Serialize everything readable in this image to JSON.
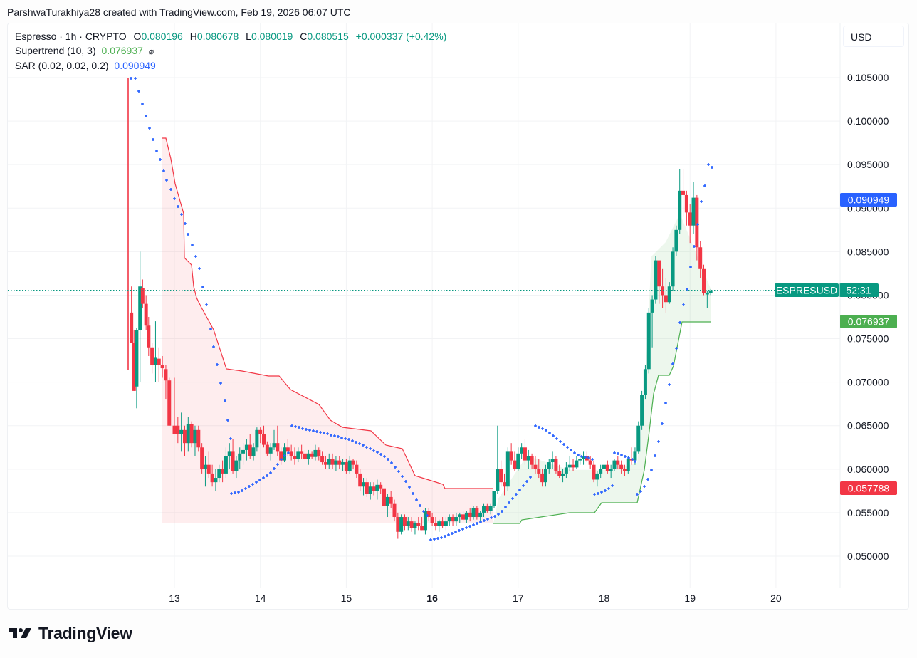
{
  "credit": "ParshwaTurakhiya28 created with TradingView.com, Feb 19, 2026 06:07 UTC",
  "legend": {
    "symbol": "Espresso · 1h · CRYPTO",
    "o_label": "O",
    "o": "0.080196",
    "h_label": "H",
    "h": "0.080678",
    "l_label": "L",
    "l": "0.080019",
    "c_label": "C",
    "c": "0.080515",
    "change": "+0.000337 (+0.42%)",
    "supertrend_label": "Supertrend (10, 3)",
    "supertrend_value": "0.076937",
    "supertrend_icon": "hidden-eye-icon",
    "sar_label": "SAR (0.02, 0.02, 0.2)",
    "sar_value": "0.090949"
  },
  "currency": "USD",
  "price_labels": {
    "sar": "0.090949",
    "symbol": "ESPRESUSD",
    "countdown": "52:31",
    "supertrend": "0.076937",
    "supertrend_down": "0.057788"
  },
  "colors": {
    "up": "#089981",
    "down": "#f23645",
    "sar": "#2962ff",
    "supertrend_up": "#4caf50",
    "supertrend_down": "#f23645"
  },
  "logo": "TradingView",
  "chart_data": {
    "type": "candlestick",
    "title": "Espresso · 1h · CRYPTO",
    "xlabel": "",
    "ylabel": "USD",
    "x_ticks": [
      "13",
      "14",
      "15",
      "16",
      "17",
      "18",
      "19",
      "20"
    ],
    "y_ticks": [
      "0.105000",
      "0.100000",
      "0.095000",
      "0.090000",
      "0.085000",
      "0.080000",
      "0.075000",
      "0.070000",
      "0.065000",
      "0.060000",
      "0.055000",
      "0.050000"
    ],
    "ylim": [
      0.046,
      0.108
    ],
    "grid": true,
    "last_price": 0.080515,
    "indicators": {
      "supertrend": {
        "params": "10, 3",
        "value": 0.076937,
        "last_down_value": 0.057788
      },
      "sar": {
        "params": "0.02, 0.02, 0.2",
        "value": 0.090949
      }
    },
    "candles": [
      [
        12.5,
        0.078,
        0.081,
        0.0745,
        0.0745
      ],
      [
        12.53,
        0.0745,
        0.076,
        0.069,
        0.069
      ],
      [
        12.56,
        0.0695,
        0.0762,
        0.067,
        0.076
      ],
      [
        12.6,
        0.076,
        0.085,
        0.07,
        0.081
      ],
      [
        12.63,
        0.0808,
        0.0818,
        0.0785,
        0.079
      ],
      [
        12.67,
        0.079,
        0.08,
        0.076,
        0.0765
      ],
      [
        12.7,
        0.0765,
        0.0775,
        0.073,
        0.074
      ],
      [
        12.74,
        0.074,
        0.0745,
        0.071,
        0.072
      ],
      [
        12.78,
        0.072,
        0.077,
        0.07,
        0.0728
      ],
      [
        12.82,
        0.0727,
        0.074,
        0.07,
        0.072
      ],
      [
        12.86,
        0.072,
        0.073,
        0.0705,
        0.0716
      ],
      [
        12.9,
        0.0715,
        0.072,
        0.068,
        0.0702
      ],
      [
        12.94,
        0.0702,
        0.0705,
        0.065,
        0.065
      ],
      [
        13.0,
        0.065,
        0.0705,
        0.064,
        0.064
      ]
    ]
  }
}
